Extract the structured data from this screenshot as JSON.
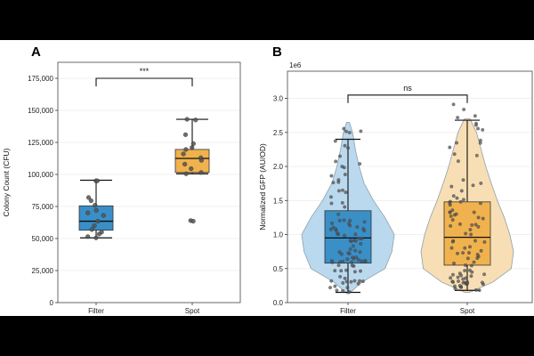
{
  "chart_data": [
    {
      "panel": "A",
      "type": "box",
      "title": "",
      "xlabel": "",
      "ylabel": "Colony Count (CFU)",
      "ylim": [
        0,
        187500
      ],
      "yticks": [
        0,
        25000,
        50000,
        75000,
        100000,
        125000,
        150000,
        175000
      ],
      "ytick_labels": [
        "0",
        "25,000",
        "50,000",
        "75,000",
        "100,000",
        "125,000",
        "150,000",
        "175,000"
      ],
      "categories": [
        "Filter",
        "Spot"
      ],
      "colors": [
        "#3a8fc7",
        "#f0b24e"
      ],
      "boxes": [
        {
          "name": "Filter",
          "whisker_low": 50500,
          "q1": 56500,
          "median": 63500,
          "q3": 75500,
          "whisker_high": 95500,
          "points": [
            95000,
            95000,
            82000,
            79500,
            76000,
            72000,
            70000,
            68000,
            63500,
            60000,
            57000,
            55000,
            53500,
            51500,
            50500
          ]
        },
        {
          "name": "Spot",
          "whisker_low": 100500,
          "q1": 101500,
          "median": 112500,
          "q3": 119500,
          "whisker_high": 143000,
          "points": [
            143000,
            142500,
            131000,
            124000,
            121000,
            119500,
            116000,
            113000,
            111000,
            108000,
            104500,
            101500,
            100500,
            64000,
            63500
          ]
        }
      ],
      "significance": {
        "label": "***",
        "bracket_y": 175000
      },
      "grid": true
    },
    {
      "panel": "B",
      "type": "violin",
      "title": "",
      "xlabel": "",
      "ylabel": "Normalized GFP (AU/OD)",
      "scale_label": "1e6",
      "ylim": [
        0,
        3.4
      ],
      "yticks": [
        0,
        0.5,
        1.0,
        1.5,
        2.0,
        2.5,
        3.0
      ],
      "ytick_labels": [
        "0.0",
        "0.5",
        "1.0",
        "1.5",
        "2.0",
        "2.5",
        "3.0"
      ],
      "categories": [
        "Filter",
        "Spot"
      ],
      "colors": [
        "#3a8fc7",
        "#f0b24e"
      ],
      "violin_colors": [
        "#b8d8ee",
        "#f8ddb0"
      ],
      "boxes": [
        {
          "name": "Filter",
          "whisker_low": 0.15,
          "q1": 0.58,
          "median": 0.95,
          "q3": 1.35,
          "whisker_high": 2.4,
          "density": [
            [
              0.13,
              0.02
            ],
            [
              0.3,
              0.3
            ],
            [
              0.5,
              0.8
            ],
            [
              0.75,
              0.95
            ],
            [
              1.0,
              1.0
            ],
            [
              1.25,
              0.8
            ],
            [
              1.5,
              0.55
            ],
            [
              1.75,
              0.35
            ],
            [
              2.0,
              0.24
            ],
            [
              2.25,
              0.16
            ],
            [
              2.5,
              0.1
            ],
            [
              2.65,
              0.03
            ]
          ]
        },
        {
          "name": "Spot",
          "whisker_low": 0.18,
          "q1": 0.55,
          "median": 0.96,
          "q3": 1.48,
          "whisker_high": 2.68,
          "density": [
            [
              0.15,
              0.05
            ],
            [
              0.3,
              0.55
            ],
            [
              0.5,
              0.95
            ],
            [
              0.75,
              1.0
            ],
            [
              1.0,
              0.92
            ],
            [
              1.25,
              0.8
            ],
            [
              1.5,
              0.65
            ],
            [
              1.75,
              0.52
            ],
            [
              2.0,
              0.4
            ],
            [
              2.25,
              0.3
            ],
            [
              2.5,
              0.2
            ],
            [
              2.7,
              0.06
            ]
          ]
        }
      ],
      "significance": {
        "label": "ns",
        "bracket_y": 3.05
      },
      "grid": true
    }
  ]
}
